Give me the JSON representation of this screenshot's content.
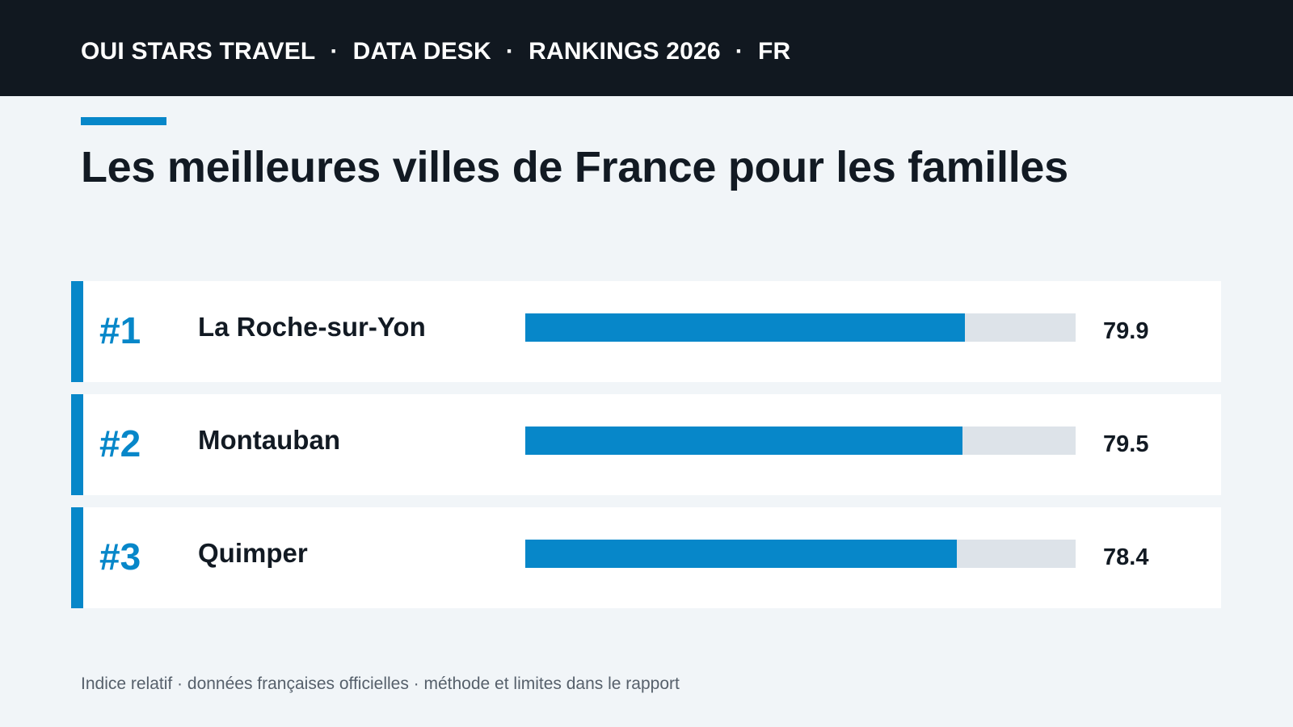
{
  "header": {
    "items": [
      "OUI STARS TRAVEL",
      "DATA DESK",
      "RANKINGS 2026",
      "FR"
    ],
    "separator": "·"
  },
  "colors": {
    "accent": "#0787c9",
    "track": "#dde3e9",
    "header_bg": "#111820",
    "page_bg": "#f1f5f8"
  },
  "title": "Les meilleures villes de France pour les familles",
  "footnote": "Indice relatif · données françaises officielles · méthode et limites dans le rapport",
  "chart_data": {
    "type": "bar",
    "orientation": "horizontal",
    "title": "Les meilleures villes de France pour les familles",
    "xlim": [
      0,
      100
    ],
    "grid": false,
    "rows": [
      {
        "rank": "#1",
        "city": "La Roche-sur-Yon",
        "value": 79.9,
        "label": "79.9"
      },
      {
        "rank": "#2",
        "city": "Montauban",
        "value": 79.5,
        "label": "79.5"
      },
      {
        "rank": "#3",
        "city": "Quimper",
        "value": 78.4,
        "label": "78.4"
      }
    ]
  }
}
